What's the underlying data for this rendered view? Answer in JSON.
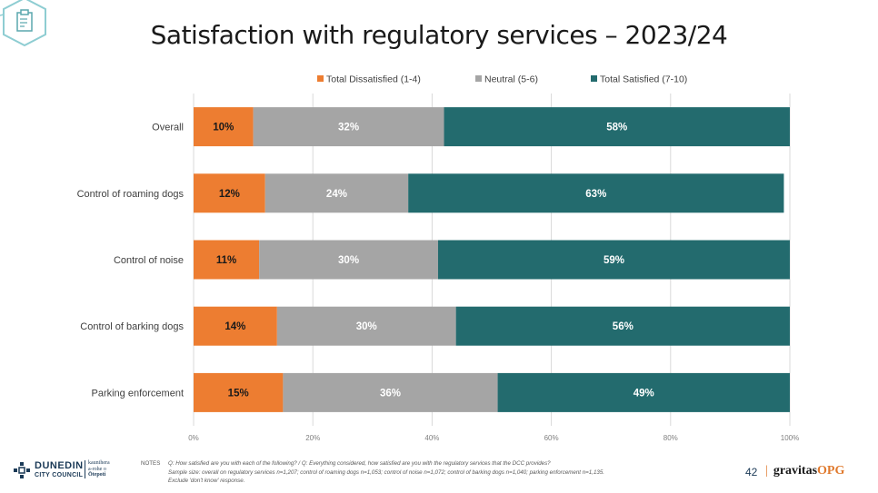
{
  "title": "Satisfaction with regulatory services – 2023/24",
  "colors": {
    "dissatisfied": "#ED7D31",
    "neutral": "#A5A5A5",
    "satisfied": "#236B6E",
    "grid": "#D9D9D9"
  },
  "chart_data": {
    "type": "bar",
    "orientation": "horizontal",
    "stacked": true,
    "categories": [
      "Overall",
      "Control of roaming dogs",
      "Control of noise",
      "Control of barking dogs",
      "Parking enforcement"
    ],
    "series": [
      {
        "name": "Total Dissatisfied (1-4)",
        "values": [
          10,
          12,
          11,
          14,
          15
        ],
        "labels": [
          "10%",
          "12%",
          "11%",
          "14%",
          "15%"
        ]
      },
      {
        "name": "Neutral (5-6)",
        "values": [
          32,
          24,
          30,
          30,
          36
        ],
        "labels": [
          "32%",
          "24%",
          "30%",
          "30%",
          "36%"
        ]
      },
      {
        "name": "Total Satisfied (7-10)",
        "values": [
          58,
          63,
          59,
          56,
          49
        ],
        "labels": [
          "58%",
          "63%",
          "59%",
          "56%",
          "49%"
        ]
      }
    ],
    "xlim": [
      0,
      100
    ],
    "x_ticks": [
      "0%",
      "20%",
      "40%",
      "60%",
      "80%",
      "100%"
    ],
    "legend_position": "top",
    "grid": true
  },
  "footer": {
    "notes_label": "NOTES",
    "notes_line1": "Q: How satisfied are you with each of the following?  /  Q: Everything considered, how satisfied are you with the regulatory services that the DCC provides?",
    "notes_line2": "Sample size: overall on regulatory services n=1,207; control of roaming dogs n=1,053; control of noise n=1,072; control of barking dogs n=1,040; parking enforcement n=1,135.",
    "notes_line3": "Exclude 'don't know' response.",
    "page_number": "42",
    "brand_main": "gravitas",
    "brand_suffix": "OPG",
    "brand_sep": "|",
    "council_name_1": "DUNEDIN",
    "council_name_2": "CITY COUNCIL",
    "council_maori_1": "kaunihera",
    "council_maori_2": "a-rohe o",
    "council_maori_3": "Ōtepoti"
  }
}
